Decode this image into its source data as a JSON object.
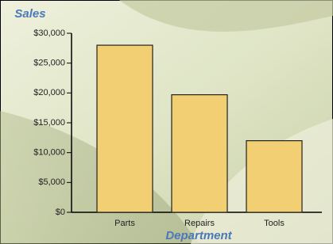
{
  "chart_data": {
    "type": "bar",
    "title": "Sales",
    "x_label": "Department",
    "categories": [
      "Parts",
      "Repairs",
      "Tools"
    ],
    "values": [
      28000,
      19700,
      12000
    ],
    "color": "#f2cf72",
    "ylim": [
      0,
      30000
    ],
    "yticks": [
      {
        "value": 0,
        "label": "$0"
      },
      {
        "value": 5000,
        "label": "$5,000"
      },
      {
        "value": 10000,
        "label": "$10,000"
      },
      {
        "value": 15000,
        "label": "$15,000"
      },
      {
        "value": 20000,
        "label": "$20,000"
      },
      {
        "value": 25000,
        "label": "$25,000"
      },
      {
        "value": 30000,
        "label": "$30,000"
      }
    ],
    "grid": false
  }
}
